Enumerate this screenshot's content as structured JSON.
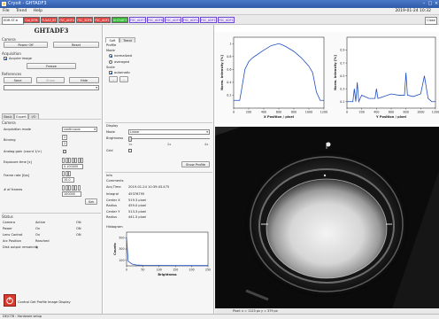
{
  "window": {
    "title": "Cryoit - GHTADF3"
  },
  "menu": {
    "items": [
      "File",
      "Trend",
      "Help"
    ],
    "datetime": "2019-01-24 10:32"
  },
  "devices": {
    "selector": "EDR-ST-b",
    "tabs": [
      {
        "label": "Col_BTM",
        "color": "red"
      },
      {
        "label": "FLSA3_BT",
        "color": "red"
      },
      {
        "label": "FSC_ADF4",
        "color": "red"
      },
      {
        "label": "FSC_5DF6",
        "color": "red"
      },
      {
        "label": "FSC_ADF1",
        "color": "red"
      },
      {
        "label": "GHTADF3",
        "color": "green"
      },
      {
        "label": "FSC_ADF7",
        "color": "purple"
      },
      {
        "label": "FSC_ADF8",
        "color": "purple"
      },
      {
        "label": "FSC_ADF9",
        "color": "purple"
      },
      {
        "label": "FSC_ADF10",
        "color": "purple"
      },
      {
        "label": "FSC_ADF11",
        "color": "purple"
      },
      {
        "label": "FSC_ADF12",
        "color": "purple"
      }
    ],
    "close_label": "Close"
  },
  "left": {
    "camera_name": "GHTADF3",
    "camera_section": "Camera",
    "power_off": "Power Off",
    "reset": "Reset",
    "acquisition_section": "Acquisition",
    "acquire_image": "Acquire image",
    "freeze": "Freeze",
    "references_section": "References",
    "ref_save": "Save",
    "ref_show": "Show",
    "ref_hide": "Hide",
    "tabs": [
      "Basic",
      "Expert",
      "I/O"
    ],
    "camera_group": "Camera",
    "acq_mode_label": "Acquisition mode",
    "acq_mode_value": "continuous",
    "binning_label": "Binning",
    "binning_values": [
      "2",
      "2"
    ],
    "analog_gain_label": "Analog gain (count 1/>)",
    "exposure_label": "Exposure time [s]",
    "exposure_value": "0.100000",
    "frame_rate_label": "Frame rate [fps]",
    "frame_rate_value": "10.0",
    "num_frames_label": "# of frames",
    "num_frames_value": "100000",
    "set_label": "Set",
    "status_section": "Status",
    "status_rows": [
      {
        "k": "Camera",
        "v": "Active",
        "v2": "ON"
      },
      {
        "k": "Power",
        "v": "On",
        "v2": "ON"
      },
      {
        "k": "Lens Control",
        "v": "On",
        "v2": "ON"
      },
      {
        "k": "Arc Position",
        "v": "Reached",
        "v2": ""
      },
      {
        "k": "Disk output remaining",
        "v": "0",
        "v2": ""
      }
    ],
    "bottom_label": "Control Get Profile Image Display"
  },
  "middle": {
    "tabs": [
      "Soft",
      "Trend"
    ],
    "profile_label": "Profile",
    "mode_label": "Mode",
    "mode_options": [
      "normalized",
      "averaged"
    ],
    "scale_label": "Scale",
    "automatic_label": "automatic",
    "display_label": "Display",
    "disp_mode_label": "Mode",
    "disp_mode_value": "Linear",
    "brightness_label": "Brightness",
    "brightness_ticks": [
      "1x",
      "2x",
      "4x"
    ],
    "grid_label": "Grid",
    "show_profile": "Show Profile",
    "info_label": "Info",
    "comments_label": "Comments",
    "acq_time_label": "Acq Time",
    "acq_time_value": "2019-01-24 10:39:43.475",
    "info_rows": [
      {
        "k": "Integral",
        "v": "45376795"
      },
      {
        "k": "Center X",
        "v": "519.3 pixel"
      },
      {
        "k": "Radius",
        "v": "459.0 pixel"
      },
      {
        "k": "Center Y",
        "v": "513.3 pixel"
      },
      {
        "k": "Radius",
        "v": "441.5 pixel"
      }
    ],
    "histogram_label": "Histogram"
  },
  "chart_data": [
    {
      "type": "line",
      "xlabel": "X Position / pixel",
      "ylabel": "Norm. Intensity [%]",
      "xlim": [
        0,
        1200
      ],
      "ylim": [
        0,
        1.1
      ],
      "xticks": [
        0,
        200,
        400,
        600,
        800,
        1000,
        1200
      ],
      "yticks": [
        0.2,
        0.4,
        0.6,
        0.8,
        1.0
      ],
      "x": [
        0,
        80,
        100,
        150,
        200,
        250,
        300,
        400,
        500,
        600,
        650,
        700,
        800,
        900,
        1000,
        1050,
        1100,
        1150,
        1200
      ],
      "y": [
        0.12,
        0.12,
        0.25,
        0.6,
        0.72,
        0.78,
        0.82,
        0.9,
        0.97,
        1.0,
        0.98,
        0.95,
        0.88,
        0.78,
        0.65,
        0.55,
        0.25,
        0.12,
        0.12
      ]
    },
    {
      "type": "line",
      "xlabel": "Y Position / pixel",
      "ylabel": "Norm. Intensity [%]",
      "xlim": [
        0,
        1200
      ],
      "ylim": [
        0,
        1.1
      ],
      "xticks": [
        0,
        200,
        400,
        600,
        800,
        1000,
        1200
      ],
      "yticks": [
        0.1,
        0.3,
        0.5,
        0.7,
        0.9
      ],
      "x": [
        0,
        80,
        100,
        120,
        140,
        160,
        200,
        300,
        380,
        400,
        420,
        500,
        600,
        700,
        780,
        800,
        820,
        900,
        1000,
        1050,
        1100,
        1150,
        1200
      ],
      "y": [
        0.1,
        0.1,
        0.3,
        0.1,
        0.4,
        0.1,
        0.2,
        0.15,
        0.15,
        0.3,
        0.15,
        0.18,
        0.22,
        0.2,
        0.2,
        0.55,
        0.2,
        0.18,
        0.22,
        0.5,
        0.15,
        0.1,
        0.1
      ]
    },
    {
      "type": "line",
      "xlabel": "Brightness",
      "ylabel": "Counts",
      "xlim": [
        0,
        250
      ],
      "ylim": [
        0,
        600
      ],
      "xticks": [
        0,
        50,
        100,
        150,
        200,
        250
      ],
      "yticks": [
        100,
        300,
        500
      ],
      "x": [
        0,
        5,
        10,
        15,
        20,
        30,
        50,
        100,
        150,
        200,
        250
      ],
      "y": [
        500,
        80,
        60,
        40,
        25,
        15,
        10,
        8,
        5,
        5,
        5
      ]
    }
  ],
  "image_coords": "Pixel: x = 1123 px   y = 379 px",
  "status_bar": "DE/CTB : Hardware setup"
}
